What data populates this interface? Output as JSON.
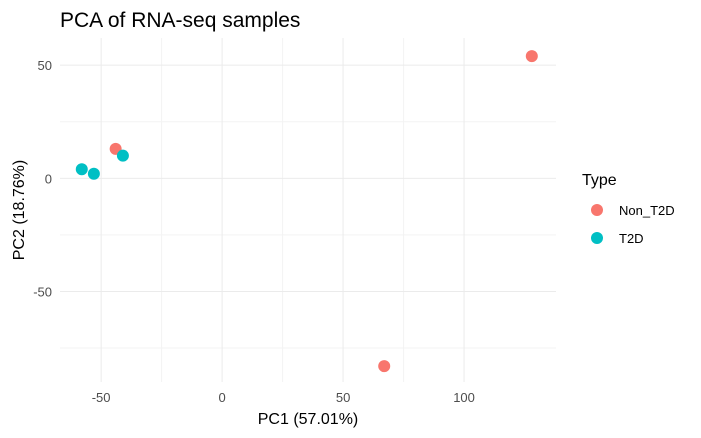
{
  "chart_data": {
    "type": "scatter",
    "title": "PCA of RNA-seq samples",
    "xlabel": "PC1 (57.01%)",
    "ylabel": "PC2 (18.76%)",
    "xlim": [
      -67,
      138
    ],
    "ylim": [
      -90,
      62
    ],
    "x_ticks": [
      -50,
      0,
      50,
      100
    ],
    "x_tick_labels": [
      "-50",
      "0",
      "50",
      "100"
    ],
    "y_ticks": [
      -50,
      0,
      50
    ],
    "y_tick_labels": [
      "-50",
      "0",
      "50"
    ],
    "grid": true,
    "legend": {
      "title": "Type",
      "placement": "right"
    },
    "series": [
      {
        "name": "Non_T2D",
        "color": "#F8766D",
        "points": [
          {
            "x": -44,
            "y": 13
          },
          {
            "x": 128,
            "y": 54
          },
          {
            "x": 67,
            "y": -83
          }
        ]
      },
      {
        "name": "T2D",
        "color": "#00BFC4",
        "points": [
          {
            "x": -58,
            "y": 4
          },
          {
            "x": -53,
            "y": 2
          },
          {
            "x": -41,
            "y": 10
          }
        ]
      }
    ]
  }
}
